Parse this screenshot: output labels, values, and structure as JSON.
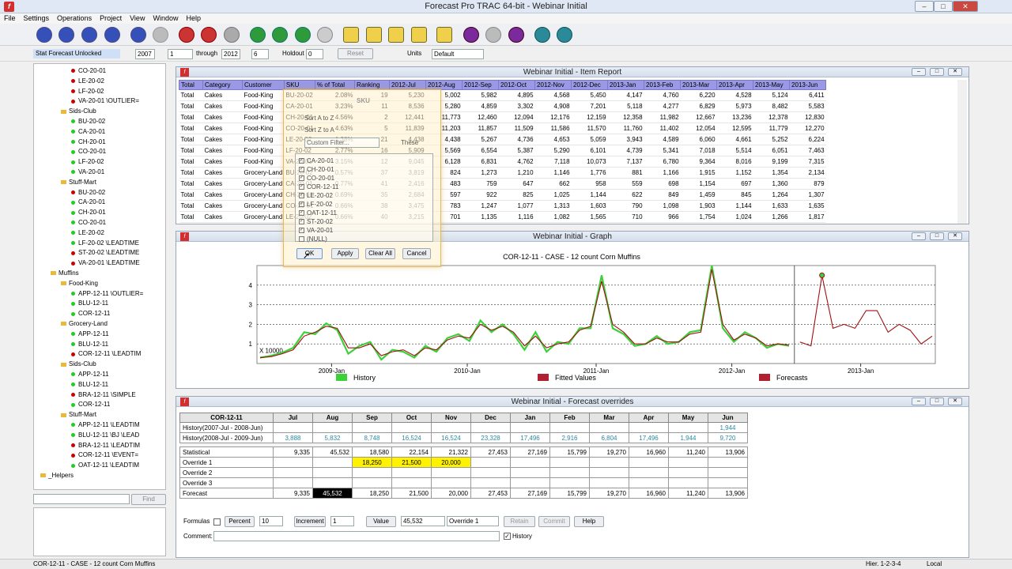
{
  "window": {
    "title": "Forecast Pro TRAC 64-bit - Webinar Initial"
  },
  "menu": [
    "File",
    "Settings",
    "Operations",
    "Project",
    "View",
    "Window",
    "Help"
  ],
  "options": {
    "status": "Stat Forecast Unlocked",
    "start_year": "2007",
    "start_period": "1",
    "through_label": "through",
    "end_year": "2012",
    "end_period": "6",
    "holdout_label": "Holdout",
    "holdout": "0",
    "reset": "Reset",
    "units_label": "Units",
    "units": "Default"
  },
  "tree": {
    "items": [
      {
        "t": "CO-20-01",
        "i": 3,
        "c": "r"
      },
      {
        "t": "LE-20-02",
        "i": 3,
        "c": "r"
      },
      {
        "t": "LF-20-02",
        "i": 3,
        "c": "r"
      },
      {
        "t": "VA-20-01 \\OUTLIER=",
        "i": 3,
        "c": "r"
      },
      {
        "t": "Sids-Club",
        "i": 2,
        "c": "f"
      },
      {
        "t": "BU-20-02",
        "i": 3,
        "c": "g"
      },
      {
        "t": "CA-20-01",
        "i": 3,
        "c": "g"
      },
      {
        "t": "CH-20-01",
        "i": 3,
        "c": "g"
      },
      {
        "t": "CO-20-01",
        "i": 3,
        "c": "g"
      },
      {
        "t": "LF-20-02",
        "i": 3,
        "c": "g"
      },
      {
        "t": "VA-20-01",
        "i": 3,
        "c": "g"
      },
      {
        "t": "Stuff-Mart",
        "i": 2,
        "c": "f"
      },
      {
        "t": "BU-20-02",
        "i": 3,
        "c": "r"
      },
      {
        "t": "CA-20-01",
        "i": 3,
        "c": "g"
      },
      {
        "t": "CH-20-01",
        "i": 3,
        "c": "g"
      },
      {
        "t": "CO-20-01",
        "i": 3,
        "c": "g"
      },
      {
        "t": "LE-20-02",
        "i": 3,
        "c": "g"
      },
      {
        "t": "LF-20-02 \\LEADTIME",
        "i": 3,
        "c": "g"
      },
      {
        "t": "ST-20-02 \\LEADTIME",
        "i": 3,
        "c": "r"
      },
      {
        "t": "VA-20-01 \\LEADTIME",
        "i": 3,
        "c": "r"
      },
      {
        "t": "Muffins",
        "i": 1,
        "c": "f"
      },
      {
        "t": "Food-King",
        "i": 2,
        "c": "f"
      },
      {
        "t": "APP-12-11 \\OUTLIER=",
        "i": 3,
        "c": "g"
      },
      {
        "t": "BLU-12-11",
        "i": 3,
        "c": "g"
      },
      {
        "t": "COR-12-11",
        "i": 3,
        "c": "g"
      },
      {
        "t": "Grocery-Land",
        "i": 2,
        "c": "f"
      },
      {
        "t": "APP-12-11",
        "i": 3,
        "c": "g"
      },
      {
        "t": "BLU-12-11",
        "i": 3,
        "c": "g"
      },
      {
        "t": "COR-12-11 \\LEADTIM",
        "i": 3,
        "c": "r"
      },
      {
        "t": "Sids-Club",
        "i": 2,
        "c": "f"
      },
      {
        "t": "APP-12-11",
        "i": 3,
        "c": "g"
      },
      {
        "t": "BLU-12-11",
        "i": 3,
        "c": "g"
      },
      {
        "t": "BRA-12-11 \\SIMPLE",
        "i": 3,
        "c": "r"
      },
      {
        "t": "COR-12-11",
        "i": 3,
        "c": "g"
      },
      {
        "t": "Stuff-Mart",
        "i": 2,
        "c": "f"
      },
      {
        "t": "APP-12-11 \\LEADTIM",
        "i": 3,
        "c": "g"
      },
      {
        "t": "BLU-12-11 \\BJ \\LEAD",
        "i": 3,
        "c": "g"
      },
      {
        "t": "BRA-12-11 \\LEADTIM",
        "i": 3,
        "c": "r"
      },
      {
        "t": "COR-12-11 \\EVENT=",
        "i": 3,
        "c": "r"
      },
      {
        "t": "OAT-12-11 \\LEADTIM",
        "i": 3,
        "c": "g"
      },
      {
        "t": "_Helpers",
        "i": 0,
        "c": "f"
      }
    ],
    "find": "Find"
  },
  "report": {
    "title": "Webinar Initial - Item Report",
    "headers": [
      "Total",
      "Category",
      "Customer",
      "SKU",
      "% of Total",
      "Ranking",
      "2012-Jul",
      "2012-Aug",
      "2012-Sep",
      "2012-Oct",
      "2012-Nov",
      "2012-Dec",
      "2013-Jan",
      "2013-Feb",
      "2013-Mar",
      "2013-Apr",
      "2013-May",
      "2013-Jun"
    ],
    "rows": [
      [
        "Total",
        "Cakes",
        "Food-King",
        "BU-20-02",
        "2.08%",
        "19",
        "5,230",
        "5,002",
        "5,982",
        "4,895",
        "4,568",
        "5,450",
        "4,147",
        "4,760",
        "6,220",
        "4,528",
        "5,124",
        "6,411"
      ],
      [
        "Total",
        "Cakes",
        "Food-King",
        "CA-20-01",
        "3.23%",
        "11",
        "8,536",
        "5,280",
        "4,859",
        "3,302",
        "4,908",
        "7,201",
        "5,118",
        "4,277",
        "6,829",
        "5,973",
        "8,482",
        "5,583"
      ],
      [
        "Total",
        "Cakes",
        "Food-King",
        "CH-20-01",
        "4.56%",
        "2",
        "12,441",
        "11,773",
        "12,460",
        "12,094",
        "12,176",
        "12,159",
        "12,358",
        "11,982",
        "12,667",
        "13,236",
        "12,378",
        "12,830"
      ],
      [
        "Total",
        "Cakes",
        "Food-King",
        "CO-20-01",
        "4.63%",
        "5",
        "11,839",
        "11,203",
        "11,857",
        "11,509",
        "11,586",
        "11,570",
        "11,760",
        "11,402",
        "12,054",
        "12,595",
        "11,779",
        "12,270"
      ],
      [
        "Total",
        "Cakes",
        "Food-King",
        "LE-20-02",
        "1.38%",
        "21",
        "4,438",
        "4,438",
        "5,267",
        "4,736",
        "4,653",
        "5,059",
        "3,943",
        "4,589",
        "6,060",
        "4,661",
        "5,252",
        "6,224"
      ],
      [
        "Total",
        "Cakes",
        "Food-King",
        "LF-20-02",
        "2.77%",
        "16",
        "5,909",
        "5,569",
        "6,554",
        "5,387",
        "5,290",
        "6,101",
        "4,739",
        "5,341",
        "7,018",
        "5,514",
        "6,051",
        "7,463"
      ],
      [
        "Total",
        "Cakes",
        "Food-King",
        "VA-20-01",
        "3.15%",
        "12",
        "9,045",
        "6,128",
        "6,831",
        "4,762",
        "7,118",
        "10,073",
        "7,137",
        "6,780",
        "9,364",
        "8,016",
        "9,199",
        "7,315"
      ],
      [
        "Total",
        "Cakes",
        "Grocery-Land",
        "BU-20-02",
        "0.57%",
        "37",
        "3,819",
        "824",
        "1,273",
        "1,210",
        "1,146",
        "1,776",
        "881",
        "1,166",
        "1,915",
        "1,152",
        "1,354",
        "2,134"
      ],
      [
        "Total",
        "Cakes",
        "Grocery-Land",
        "CA-20-01",
        "0.77%",
        "41",
        "2,416",
        "483",
        "759",
        "647",
        "662",
        "958",
        "559",
        "698",
        "1,154",
        "697",
        "1,360",
        "879"
      ],
      [
        "Total",
        "Cakes",
        "Grocery-Land",
        "CH-20-01",
        "0.69%",
        "35",
        "2,684",
        "597",
        "922",
        "825",
        "1,025",
        "1,144",
        "622",
        "849",
        "1,459",
        "845",
        "1,264",
        "1,307"
      ],
      [
        "Total",
        "Cakes",
        "Grocery-Land",
        "CO-20-01",
        "0.66%",
        "38",
        "3,475",
        "783",
        "1,247",
        "1,077",
        "1,313",
        "1,603",
        "790",
        "1,098",
        "1,903",
        "1,144",
        "1,633",
        "1,635"
      ],
      [
        "Total",
        "Cakes",
        "Grocery-Land",
        "LE-20-02",
        "0.66%",
        "40",
        "3,215",
        "701",
        "1,135",
        "1,116",
        "1,082",
        "1,565",
        "710",
        "966",
        "1,754",
        "1,024",
        "1,266",
        "1,817"
      ]
    ]
  },
  "filter": {
    "title": "SKU",
    "sort_az": "Sort A to Z",
    "sort_za": "Sort Z to A",
    "custom": "Custom Filter...",
    "these": "These",
    "items": [
      "CA-20-01",
      "CH-20-01",
      "CO-20-01",
      "COR-12-11",
      "LE-20-02",
      "LF-20-02",
      "OAT-12-11",
      "ST-20-02",
      "VA-20-01",
      "(NULL)"
    ],
    "ok": "OK",
    "apply": "Apply",
    "clear": "Clear All",
    "cancel": "Cancel"
  },
  "graph": {
    "title": "Webinar Initial - Graph"
  },
  "chart_data": {
    "type": "line",
    "title": "COR-12-11 - CASE - 12 count Corn Muffins",
    "ylabel_multiplier": "X 10000",
    "yticks": [
      "1",
      "2",
      "3",
      "4"
    ],
    "ylim": [
      0,
      5
    ],
    "xtick_labels": [
      "2009-Jan",
      "2010-Jan",
      "2011-Jan",
      "2012-Jan",
      "2013-Jan"
    ],
    "series": [
      {
        "name": "History",
        "color": "#3ad13a",
        "values": [
          0.3,
          0.4,
          0.55,
          0.8,
          1.6,
          1.5,
          2.05,
          1.7,
          0.5,
          0.9,
          1.1,
          0.2,
          0.7,
          0.6,
          0.3,
          0.9,
          0.6,
          1.3,
          1.5,
          1.15,
          2.2,
          1.6,
          2.0,
          1.5,
          0.7,
          1.6,
          0.6,
          1.1,
          1.0,
          1.8,
          1.8,
          4.5,
          1.8,
          1.5,
          0.9,
          1.0,
          1.4,
          1.0,
          1.1,
          1.6,
          1.7,
          5.0,
          1.8,
          1.1,
          1.6,
          1.3,
          0.8,
          1.0,
          0.9
        ]
      },
      {
        "name": "Fitted Values",
        "color": "#a01010",
        "values": [
          0.3,
          0.35,
          0.5,
          0.7,
          1.4,
          1.6,
          1.9,
          1.8,
          0.8,
          0.8,
          1.0,
          0.4,
          0.6,
          0.7,
          0.4,
          0.8,
          0.7,
          1.2,
          1.4,
          1.3,
          2.0,
          1.7,
          1.9,
          1.6,
          0.9,
          1.4,
          0.8,
          1.0,
          1.1,
          1.7,
          1.9,
          4.2,
          2.0,
          1.6,
          1.0,
          1.0,
          1.3,
          1.1,
          1.1,
          1.5,
          1.6,
          4.8,
          2.0,
          1.2,
          1.5,
          1.3,
          0.9,
          1.0,
          0.95
        ]
      },
      {
        "name": "Forecasts",
        "color": "#a01010",
        "values": [
          1.1,
          0.9,
          4.5,
          1.8,
          2.0,
          1.8,
          2.7,
          2.7,
          1.6,
          2.0,
          1.7,
          1.0,
          1.4
        ]
      }
    ]
  },
  "overrides": {
    "title": "Webinar Initial - Forecast overrides",
    "item": "COR-12-11",
    "months": [
      "Jul",
      "Aug",
      "Sep",
      "Oct",
      "Nov",
      "Dec",
      "Jan",
      "Feb",
      "Mar",
      "Apr",
      "May",
      "Jun"
    ],
    "hist1_label": "History(2007-Jul - 2008-Jun)",
    "hist1": [
      "",
      "",
      "",
      "",
      "",
      "",
      "",
      "",
      "",
      "",
      "",
      "1,944"
    ],
    "hist2_label": "History(2008-Jul - 2009-Jun)",
    "hist2": [
      "3,888",
      "5,832",
      "8,748",
      "16,524",
      "16,524",
      "23,328",
      "17,496",
      "2,916",
      "6,804",
      "17,496",
      "1,944",
      "9,720"
    ],
    "stat_label": "Statistical",
    "stat": [
      "9,335",
      "45,532",
      "18,580",
      "22,154",
      "21,322",
      "27,453",
      "27,169",
      "15,799",
      "19,270",
      "16,960",
      "11,240",
      "13,906"
    ],
    "ov1_label": "Override 1",
    "ov1": [
      "",
      "",
      "18,250",
      "21,500",
      "20,000",
      "",
      "",
      "",
      "",
      "",
      "",
      ""
    ],
    "ov2_label": "Override 2",
    "ov3_label": "Override 3",
    "fc_label": "Forecast",
    "fc": [
      "9,335",
      "45,532",
      "18,250",
      "21,500",
      "20,000",
      "27,453",
      "27,169",
      "15,799",
      "19,270",
      "16,960",
      "11,240",
      "13,906"
    ],
    "formulas": "Formulas",
    "percent": "Percent",
    "pval": "10",
    "increment": "Increment",
    "ival": "1",
    "value": "Value",
    "vval": "45,532",
    "ovsel": "Override 1",
    "retain": "Retain",
    "commit": "Commit",
    "help": "Help",
    "comment": "Comment:",
    "history": "History"
  },
  "status": {
    "left": "COR-12-11 - CASE - 12 count Corn Muffins",
    "hier": "Hier. 1-2-3-4",
    "local": "Local"
  }
}
